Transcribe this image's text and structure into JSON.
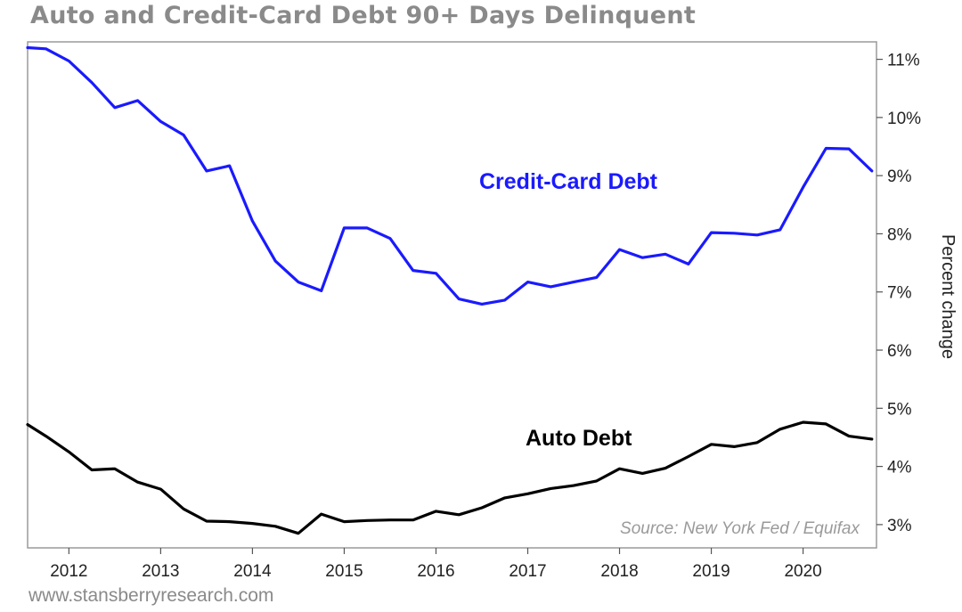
{
  "page": {
    "title": "Auto and Credit-Card Debt 90+ Days Delinquent",
    "footer": "www.stansberryresearch.com"
  },
  "chart_data": {
    "type": "line",
    "title": "Auto and Credit-Card Debt 90+ Days Delinquent",
    "xlabel": "",
    "ylabel": "Percent change",
    "y_axis_side": "right",
    "y_tick_labels": [
      "3%",
      "4%",
      "5%",
      "6%",
      "7%",
      "8%",
      "9%",
      "10%",
      "11%"
    ],
    "y_ticks": [
      3,
      4,
      5,
      6,
      7,
      8,
      9,
      10,
      11
    ],
    "ylim": [
      2.6,
      11.3
    ],
    "x_tick_labels": [
      "2012",
      "2013",
      "2014",
      "2015",
      "2016",
      "2017",
      "2018",
      "2019",
      "2020"
    ],
    "x_ticks": [
      2012,
      2013,
      2014,
      2015,
      2016,
      2017,
      2018,
      2019,
      2020
    ],
    "xlim": [
      2011.55,
      2020.8
    ],
    "grid": false,
    "annotation": "Source: New York Fed / Equifax",
    "colors": {
      "credit": "#1a1aff",
      "auto": "#000000",
      "muted": "#8a8a8a"
    },
    "series": [
      {
        "name": "Credit-Card Debt",
        "label": "Credit-Card Debt",
        "color": "#1a1aff",
        "x": [
          2011.55,
          2011.75,
          2012.0,
          2012.25,
          2012.5,
          2012.75,
          2013.0,
          2013.25,
          2013.5,
          2013.75,
          2014.0,
          2014.25,
          2014.5,
          2014.75,
          2015.0,
          2015.25,
          2015.5,
          2015.75,
          2016.0,
          2016.25,
          2016.5,
          2016.75,
          2017.0,
          2017.25,
          2017.5,
          2017.75,
          2018.0,
          2018.25,
          2018.5,
          2018.75,
          2019.0,
          2019.25,
          2019.5,
          2019.75,
          2020.0,
          2020.25,
          2020.5,
          2020.75
        ],
        "values": [
          11.2,
          11.18,
          10.97,
          10.6,
          10.17,
          10.29,
          9.93,
          9.7,
          9.08,
          9.17,
          8.22,
          7.53,
          7.17,
          7.02,
          8.1,
          8.1,
          7.92,
          7.37,
          7.32,
          6.88,
          6.79,
          6.86,
          7.17,
          7.09,
          7.17,
          7.25,
          7.73,
          7.59,
          7.65,
          7.48,
          8.02,
          8.01,
          7.98,
          8.07,
          8.8,
          9.47,
          9.46,
          9.08
        ]
      },
      {
        "name": "Auto Debt",
        "label": "Auto Debt",
        "color": "#000000",
        "x": [
          2011.55,
          2011.75,
          2012.0,
          2012.25,
          2012.5,
          2012.75,
          2013.0,
          2013.25,
          2013.5,
          2013.75,
          2014.0,
          2014.25,
          2014.5,
          2014.75,
          2015.0,
          2015.25,
          2015.5,
          2015.75,
          2016.0,
          2016.25,
          2016.5,
          2016.75,
          2017.0,
          2017.25,
          2017.5,
          2017.75,
          2018.0,
          2018.25,
          2018.5,
          2018.75,
          2019.0,
          2019.25,
          2019.5,
          2019.75,
          2020.0,
          2020.25,
          2020.5,
          2020.75
        ],
        "values": [
          4.72,
          4.52,
          4.25,
          3.94,
          3.96,
          3.73,
          3.61,
          3.27,
          3.06,
          3.05,
          3.02,
          2.97,
          2.85,
          3.18,
          3.05,
          3.07,
          3.08,
          3.08,
          3.23,
          3.17,
          3.29,
          3.46,
          3.53,
          3.62,
          3.67,
          3.75,
          3.96,
          3.88,
          3.97,
          4.17,
          4.38,
          4.34,
          4.41,
          4.64,
          4.76,
          4.73,
          4.52,
          4.47
        ]
      }
    ]
  }
}
